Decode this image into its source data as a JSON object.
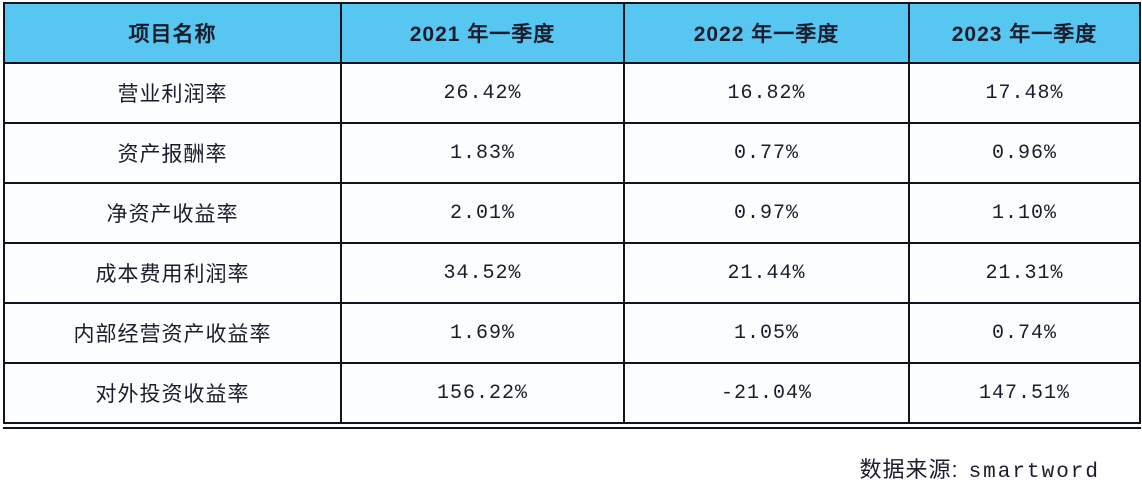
{
  "colors": {
    "header_bg": "#57C7F1",
    "border": "#131320",
    "text": "#1c1c2c",
    "cell_bg": "#fcfdfe",
    "page_bg": "#ffffff"
  },
  "table": {
    "columns": [
      "项目名称",
      "2021 年一季度",
      "2022 年一季度",
      "2023 年一季度"
    ],
    "rows": [
      {
        "label": "营业利润率",
        "values": [
          "26.42%",
          "16.82%",
          "17.48%"
        ]
      },
      {
        "label": "资产报酬率",
        "values": [
          "1.83%",
          "0.77%",
          "0.96%"
        ]
      },
      {
        "label": "净资产收益率",
        "values": [
          "2.01%",
          "0.97%",
          "1.10%"
        ]
      },
      {
        "label": "成本费用利润率",
        "values": [
          "34.52%",
          "21.44%",
          "21.31%"
        ]
      },
      {
        "label": "内部经营资产收益率",
        "values": [
          "1.69%",
          "1.05%",
          "0.74%"
        ]
      },
      {
        "label": "对外投资收益率",
        "values": [
          "156.22%",
          "-21.04%",
          "147.51%"
        ]
      }
    ]
  },
  "footer": {
    "source_label": "数据来源:",
    "source_value": "smartword"
  },
  "chart_data": {
    "type": "table",
    "title": "",
    "categories": [
      "2021 年一季度",
      "2022 年一季度",
      "2023 年一季度"
    ],
    "series": [
      {
        "name": "营业利润率",
        "values": [
          26.42,
          16.82,
          17.48
        ]
      },
      {
        "name": "资产报酬率",
        "values": [
          1.83,
          0.77,
          0.96
        ]
      },
      {
        "name": "净资产收益率",
        "values": [
          2.01,
          0.97,
          1.1
        ]
      },
      {
        "name": "成本费用利润率",
        "values": [
          34.52,
          21.44,
          21.31
        ]
      },
      {
        "name": "内部经营资产收益率",
        "values": [
          1.69,
          1.05,
          0.74
        ]
      },
      {
        "name": "对外投资收益率",
        "values": [
          156.22,
          -21.04,
          147.51
        ]
      }
    ],
    "unit": "%",
    "source": "smartword"
  }
}
